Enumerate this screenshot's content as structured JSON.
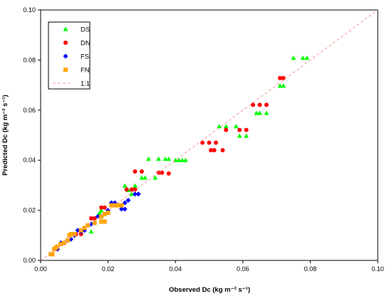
{
  "chart_data": {
    "type": "scatter",
    "xlabel": "Observed Dc (kg m⁻² s⁻¹)",
    "ylabel": "Predicted Dc (kg m⁻² s⁻¹)",
    "xlim": [
      0,
      0.1
    ],
    "ylim": [
      0,
      0.1
    ],
    "x_ticks": [
      "0.00",
      "0.02",
      "0.04",
      "0.06",
      "0.08",
      "0.10"
    ],
    "y_ticks": [
      "0.00",
      "0.02",
      "0.04",
      "0.06",
      "0.08",
      "0.10"
    ],
    "grid": false,
    "legend_position": "top-left",
    "series": [
      {
        "name": "DS",
        "marker": "triangle",
        "color": "#00ff00",
        "points": [
          [
            0.075,
            0.0808
          ],
          [
            0.0778,
            0.0808
          ],
          [
            0.079,
            0.0808
          ],
          [
            0.071,
            0.0697
          ],
          [
            0.072,
            0.0697
          ],
          [
            0.064,
            0.0588
          ],
          [
            0.065,
            0.0588
          ],
          [
            0.067,
            0.0588
          ],
          [
            0.058,
            0.0535
          ],
          [
            0.059,
            0.0497
          ],
          [
            0.061,
            0.0497
          ],
          [
            0.053,
            0.0535
          ],
          [
            0.055,
            0.0535
          ],
          [
            0.032,
            0.0405
          ],
          [
            0.035,
            0.0405
          ],
          [
            0.037,
            0.0405
          ],
          [
            0.038,
            0.0405
          ],
          [
            0.04,
            0.04
          ],
          [
            0.041,
            0.04
          ],
          [
            0.042,
            0.04
          ],
          [
            0.043,
            0.04
          ],
          [
            0.03,
            0.033
          ],
          [
            0.031,
            0.033
          ],
          [
            0.034,
            0.033
          ],
          [
            0.025,
            0.0298
          ],
          [
            0.028,
            0.0298
          ],
          [
            0.026,
            0.028
          ],
          [
            0.027,
            0.0265
          ],
          [
            0.02,
            0.02
          ],
          [
            0.018,
            0.02
          ],
          [
            0.0175,
            0.019
          ],
          [
            0.017,
            0.018
          ],
          [
            0.015,
            0.0115
          ]
        ]
      },
      {
        "name": "DN",
        "marker": "circle",
        "color": "#ff0000",
        "points": [
          [
            0.071,
            0.0728
          ],
          [
            0.072,
            0.0728
          ],
          [
            0.063,
            0.0621
          ],
          [
            0.065,
            0.0621
          ],
          [
            0.067,
            0.0621
          ],
          [
            0.059,
            0.0521
          ],
          [
            0.061,
            0.0521
          ],
          [
            0.055,
            0.0521
          ],
          [
            0.048,
            0.047
          ],
          [
            0.05,
            0.047
          ],
          [
            0.052,
            0.047
          ],
          [
            0.0505,
            0.044
          ],
          [
            0.0515,
            0.044
          ],
          [
            0.054,
            0.044
          ],
          [
            0.028,
            0.0355
          ],
          [
            0.03,
            0.0355
          ],
          [
            0.035,
            0.035
          ],
          [
            0.036,
            0.035
          ],
          [
            0.038,
            0.0347
          ],
          [
            0.0255,
            0.0283
          ],
          [
            0.027,
            0.0283
          ],
          [
            0.028,
            0.0283
          ],
          [
            0.018,
            0.0211
          ],
          [
            0.019,
            0.0211
          ],
          [
            0.016,
            0.0168
          ],
          [
            0.015,
            0.0168
          ],
          [
            0.012,
            0.0105
          ],
          [
            0.01,
            0.01
          ],
          [
            0.0095,
            0.0105
          ],
          [
            0.0105,
            0.0105
          ]
        ]
      },
      {
        "name": "FS",
        "marker": "diamond",
        "color": "#0000ff",
        "points": [
          [
            0.029,
            0.0265
          ],
          [
            0.028,
            0.0265
          ],
          [
            0.026,
            0.024
          ],
          [
            0.025,
            0.023
          ],
          [
            0.024,
            0.0205
          ],
          [
            0.025,
            0.0205
          ],
          [
            0.022,
            0.023
          ],
          [
            0.021,
            0.023
          ],
          [
            0.02,
            0.02
          ],
          [
            0.018,
            0.0175
          ],
          [
            0.017,
            0.0175
          ],
          [
            0.016,
            0.015
          ],
          [
            0.015,
            0.0145
          ],
          [
            0.013,
            0.012
          ],
          [
            0.012,
            0.0115
          ],
          [
            0.011,
            0.012
          ],
          [
            0.01,
            0.01
          ],
          [
            0.009,
            0.0085
          ],
          [
            0.008,
            0.008
          ],
          [
            0.007,
            0.007
          ],
          [
            0.006,
            0.007
          ],
          [
            0.005,
            0.0045
          ]
        ]
      },
      {
        "name": "FN",
        "marker": "square",
        "color": "#ffa500",
        "points": [
          [
            0.02,
            0.019
          ],
          [
            0.019,
            0.0185
          ],
          [
            0.018,
            0.0175
          ],
          [
            0.018,
            0.0155
          ],
          [
            0.019,
            0.0155
          ],
          [
            0.021,
            0.022
          ],
          [
            0.022,
            0.022
          ],
          [
            0.023,
            0.022
          ],
          [
            0.024,
            0.022
          ],
          [
            0.016,
            0.015
          ],
          [
            0.014,
            0.014
          ],
          [
            0.013,
            0.013
          ],
          [
            0.012,
            0.012
          ],
          [
            0.01,
            0.0105
          ],
          [
            0.009,
            0.0105
          ],
          [
            0.0085,
            0.01
          ],
          [
            0.008,
            0.008
          ],
          [
            0.007,
            0.007
          ],
          [
            0.006,
            0.0065
          ],
          [
            0.005,
            0.0055
          ],
          [
            0.0045,
            0.005
          ],
          [
            0.004,
            0.0045
          ],
          [
            0.0035,
            0.0025
          ],
          [
            0.003,
            0.0025
          ]
        ]
      },
      {
        "name": "1:1",
        "marker": "dashed-line",
        "color": "#ff9999",
        "points": [
          [
            0,
            0
          ],
          [
            0.1,
            0.1
          ]
        ]
      }
    ]
  }
}
